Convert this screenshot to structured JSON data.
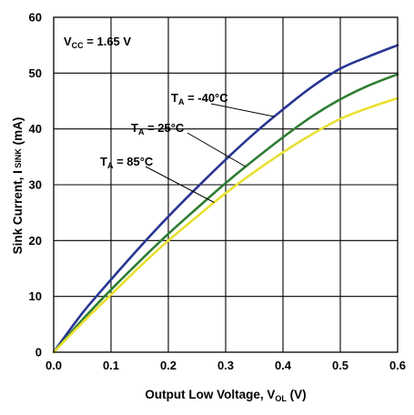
{
  "chart_data": {
    "type": "line",
    "xlabel": {
      "main": "Output Low Voltage, V",
      "sub": "OL",
      "unit": " (V)"
    },
    "ylabel": {
      "main": "Sink Current, I",
      "sub": " SINK",
      "unit": " (mA)"
    },
    "xlim": [
      0,
      0.6
    ],
    "ylim": [
      0,
      60
    ],
    "x_ticks": [
      "0.0",
      "0.1",
      "0.2",
      "0.3",
      "0.4",
      "0.5",
      "0.6"
    ],
    "y_ticks": [
      "0",
      "10",
      "20",
      "30",
      "40",
      "50",
      "60"
    ],
    "grid": true,
    "legend": "none",
    "annotation": {
      "main": "V",
      "sub": "CC",
      "rest": " = 1.65 V"
    },
    "series": [
      {
        "name": "T_A = -40°C",
        "label": {
          "main": "T",
          "sub": "A",
          "rest": " = -40°C"
        },
        "color": "#283593",
        "x": [
          0,
          0.05,
          0.1,
          0.15,
          0.2,
          0.25,
          0.3,
          0.35,
          0.4,
          0.45,
          0.5,
          0.55,
          0.6
        ],
        "y": [
          0,
          7.0,
          13.0,
          18.8,
          24.3,
          29.5,
          34.5,
          39.2,
          43.5,
          47.5,
          50.8,
          53.0,
          55.0
        ]
      },
      {
        "name": "T_A = 25°C",
        "label": {
          "main": "T",
          "sub": "A",
          "rest": " = 25°C"
        },
        "color": "#2e7d32",
        "x": [
          0,
          0.05,
          0.1,
          0.15,
          0.2,
          0.25,
          0.3,
          0.35,
          0.4,
          0.45,
          0.5,
          0.55,
          0.6
        ],
        "y": [
          0,
          5.8,
          11.2,
          16.3,
          21.2,
          25.8,
          30.3,
          34.5,
          38.5,
          42.2,
          45.3,
          47.8,
          49.8
        ]
      },
      {
        "name": "T_A = 85°C",
        "label": {
          "main": "T",
          "sub": "A",
          "rest": " = 85°C"
        },
        "color": "#e8e030",
        "x": [
          0,
          0.05,
          0.1,
          0.15,
          0.2,
          0.25,
          0.3,
          0.35,
          0.4,
          0.45,
          0.5,
          0.55,
          0.6
        ],
        "y": [
          0,
          5.3,
          10.3,
          15.3,
          20.0,
          24.3,
          28.5,
          32.3,
          35.8,
          39.0,
          41.8,
          43.8,
          45.5
        ]
      }
    ]
  }
}
